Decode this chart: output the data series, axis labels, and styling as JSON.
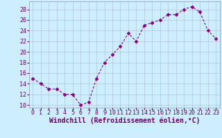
{
  "x": [
    0,
    1,
    2,
    3,
    4,
    5,
    6,
    7,
    8,
    9,
    10,
    11,
    12,
    13,
    14,
    15,
    16,
    17,
    18,
    19,
    20,
    21,
    22,
    23
  ],
  "y": [
    15,
    14,
    13,
    13,
    12,
    12,
    10,
    10.5,
    15,
    18,
    19.5,
    21,
    23.5,
    22,
    25,
    25.5,
    26,
    27,
    27,
    28,
    28.5,
    27.5,
    24,
    22.5
  ],
  "line_color": "#880088",
  "marker": "D",
  "markersize": 2.5,
  "bg_color": "#cceeff",
  "grid_color": "#aabbcc",
  "xlabel": "Windchill (Refroidissement éolien,°C)",
  "xlabel_color": "#660066",
  "xlabel_fontsize": 7,
  "tick_color": "#660066",
  "tick_fontsize": 6,
  "ylim": [
    9.5,
    29.5
  ],
  "yticks": [
    10,
    12,
    14,
    16,
    18,
    20,
    22,
    24,
    26,
    28
  ],
  "xlim": [
    -0.5,
    23.5
  ]
}
